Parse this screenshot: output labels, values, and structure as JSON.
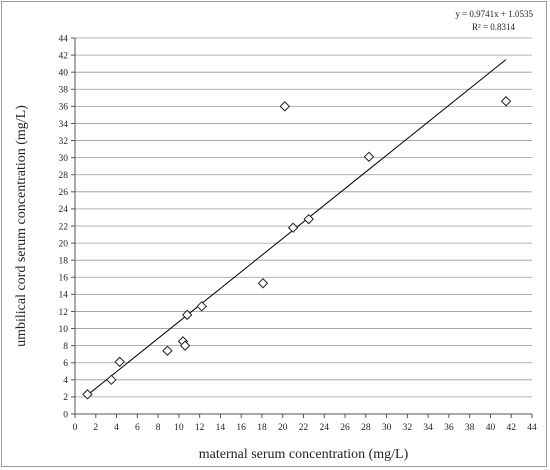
{
  "chart_data": {
    "type": "scatter",
    "title": "",
    "xlabel": "maternal serum concentration (mg/L)",
    "ylabel": "umbilical cord serum concentration (mg/L)",
    "xlim": [
      0,
      44
    ],
    "ylim": [
      0,
      44
    ],
    "xticks": [
      0,
      2,
      4,
      6,
      8,
      10,
      12,
      14,
      16,
      18,
      20,
      22,
      24,
      26,
      28,
      30,
      32,
      34,
      36,
      38,
      40,
      42,
      44
    ],
    "yticks": [
      0,
      2,
      4,
      6,
      8,
      10,
      12,
      14,
      16,
      18,
      20,
      22,
      24,
      26,
      28,
      30,
      32,
      34,
      36,
      38,
      40,
      42,
      44
    ],
    "grid": {
      "horizontal": true,
      "vertical": false
    },
    "marker": "diamond-open",
    "series": [
      {
        "x": [
          1.2,
          3.5,
          4.3,
          8.9,
          10.4,
          10.6,
          10.8,
          12.2,
          18.1,
          20.2,
          21.0,
          22.5,
          28.3,
          41.5
        ],
        "y": [
          2.3,
          4.0,
          6.1,
          7.4,
          8.5,
          8.0,
          11.6,
          12.6,
          15.3,
          36.0,
          21.8,
          22.8,
          30.1,
          36.6
        ]
      }
    ],
    "trendline": {
      "slope": 0.9741,
      "intercept": 1.0535,
      "x_range": [
        1.0,
        41.5
      ],
      "equation_label": "y = 0.9741x + 1.0535",
      "r2_label": "R² = 0.8314"
    },
    "colors": {
      "marker_stroke": "#222222",
      "trendline": "#000000",
      "grid": "#9a9a9a",
      "axis": "#555555"
    }
  }
}
